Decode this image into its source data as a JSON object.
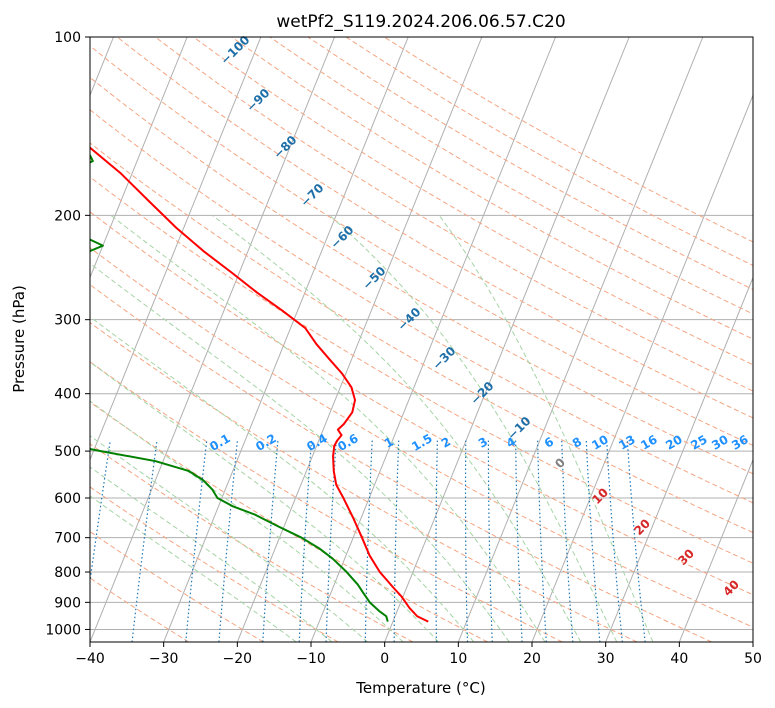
{
  "chart_data": {
    "type": "line",
    "title": "wetPf2_S119.2024.206.06.57.C20",
    "xlabel": "Temperature (°C)",
    "ylabel": "Pressure (hPa)",
    "xlim": [
      -40,
      50
    ],
    "ylim": [
      1050,
      100
    ],
    "y_scale": "log",
    "x_ticks": [
      "−40",
      "−30",
      "−20",
      "−10",
      "0",
      "10",
      "20",
      "30",
      "40",
      "50"
    ],
    "y_ticks": [
      "100",
      "200",
      "300",
      "400",
      "500",
      "600",
      "700",
      "800",
      "900",
      "1000"
    ],
    "grid": true,
    "skew": true,
    "series": [
      {
        "color": "#ff0000",
        "p": [
          970,
          950,
          920,
          880,
          850,
          800,
          750,
          700,
          650,
          600,
          570,
          540,
          510,
          490,
          480,
          470,
          460,
          450,
          430,
          410,
          390,
          370,
          350,
          330,
          310,
          290,
          270,
          250,
          230,
          210,
          190,
          170,
          150,
          140,
          130,
          120,
          110,
          100
        ],
        "t": [
          4.8,
          3.0,
          1.5,
          -0.2,
          -1.8,
          -4.5,
          -6.8,
          -8.8,
          -11.0,
          -13.5,
          -15.2,
          -16.3,
          -17.2,
          -17.6,
          -17.5,
          -17.2,
          -18.0,
          -17.5,
          -17.0,
          -17.3,
          -18.5,
          -20.5,
          -23.0,
          -25.6,
          -28.0,
          -32.0,
          -36.5,
          -41.0,
          -46.0,
          -51.0,
          -56.0,
          -61.5,
          -68.5,
          -72.0,
          -75.0,
          -79.5,
          -84.0,
          -88.5
        ]
      },
      {
        "color": "#008000",
        "p": [
          970,
          950,
          930,
          900,
          870,
          840,
          800,
          760,
          730,
          700,
          670,
          640,
          620,
          600,
          580,
          560,
          540,
          520,
          500,
          490,
          480,
          470,
          460,
          450,
          440,
          430,
          420,
          410,
          400,
          375,
          355,
          340,
          320,
          300,
          285,
          275,
          265,
          258,
          250,
          243,
          235,
          225,
          215,
          205,
          198,
          190,
          182,
          172,
          162,
          152,
          142,
          132,
          122,
          112,
          106,
          100
        ],
        "t": [
          -0.7,
          -1.2,
          -2.5,
          -4.2,
          -5.5,
          -6.8,
          -9.0,
          -11.6,
          -14.0,
          -17.0,
          -20.8,
          -24.6,
          -28.0,
          -30.6,
          -31.8,
          -33.5,
          -36.0,
          -41.0,
          -49.0,
          -53.0,
          -57.0,
          -59.0,
          -58.5,
          -56.0,
          -54.0,
          -54.5,
          -58.0,
          -65.0,
          -76.0,
          -89.0,
          -84.0,
          -73.0,
          -66.5,
          -68.0,
          -78.0,
          -90.0,
          -97.0,
          -95.0,
          -87.0,
          -75.0,
          -63.0,
          -60.0,
          -64.0,
          -74.0,
          -85.0,
          -83.0,
          -78.0,
          -70.0,
          -66.0,
          -68.0,
          -70.5,
          -73.0,
          -73.5,
          -77.5,
          -81.0,
          -81.5
        ]
      }
    ],
    "dry_adiabats": [
      -30,
      -20,
      -10,
      0,
      10,
      20,
      30,
      40,
      50,
      60,
      70,
      80,
      90,
      100,
      110,
      120,
      130,
      140,
      150,
      160,
      170,
      180,
      190
    ],
    "moist_adiabats": [
      -15,
      -10,
      -5,
      0,
      5,
      10,
      15,
      20,
      25,
      30,
      35
    ],
    "mixing_ratios": [
      "0.1",
      "0.2",
      "0.4",
      "0.6",
      "1",
      "1.5",
      "2",
      "3",
      "4",
      "6",
      "8",
      "10",
      "13",
      "16",
      "20",
      "25",
      "30",
      "36"
    ],
    "height_labels": [
      "−100",
      "−90",
      "−80",
      "−70",
      "−60",
      "−50",
      "−40",
      "−30",
      "−20",
      "−10"
    ],
    "thetae_labels": [
      "0",
      "10",
      "20",
      "30",
      "40"
    ],
    "colors": {
      "temperature": "#ff0000",
      "dewpoint": "#008000",
      "dry_adiabat": "#f4a582",
      "moist_adiabat": "#a6d4a6",
      "mixing_ratio": "#1f77b4",
      "grid": "#b0b0b0",
      "height_label": "#1f6fa8",
      "mixing_label": "#1e90ff",
      "thetae_label": "#d62728",
      "thetae_zero": "#808080"
    }
  }
}
